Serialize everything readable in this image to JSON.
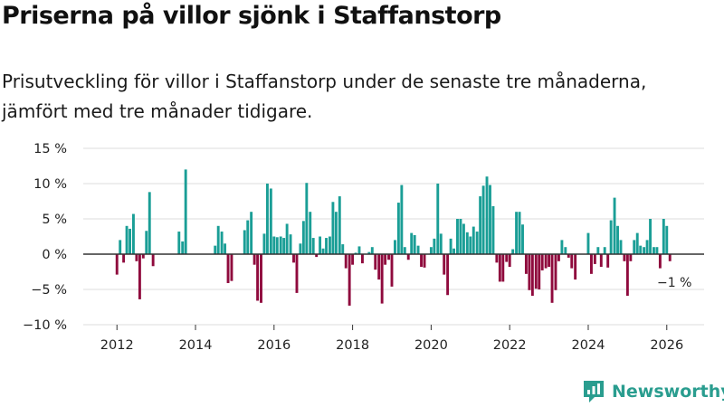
{
  "header": {
    "title": "Priserna på villor sjönk i Staffanstorp",
    "subtitle": "Prisutveckling för villor i Staffanstorp under de senaste tre månaderna, jämfört med tre månader tidigare."
  },
  "brand": {
    "name": "Newsworthy"
  },
  "colors": {
    "positive": "#1a9e96",
    "negative": "#8f0a3d",
    "grid": "#dddddd",
    "axis": "#333333",
    "brand": "#2a9d8f"
  },
  "chart_data": {
    "type": "bar",
    "title": "Priserna på villor sjönk i Staffanstorp",
    "xlabel": "",
    "ylabel": "",
    "x_unit": "year",
    "xlim": [
      2011.05,
      2026.95
    ],
    "ylim": [
      -10,
      15
    ],
    "x_ticks": [
      2012,
      2014,
      2016,
      2018,
      2020,
      2022,
      2024,
      2026
    ],
    "x_tick_labels": [
      "2012",
      "2014",
      "2016",
      "2018",
      "2020",
      "2022",
      "2024",
      "2026"
    ],
    "y_ticks": [
      -10,
      -5,
      0,
      5,
      10,
      15
    ],
    "y_tick_labels": [
      "−10 %",
      "−5 %",
      "0 %",
      "5 %",
      "10 %",
      "15 %"
    ],
    "grid": true,
    "last_value_label": "−1 %",
    "series": [
      {
        "name": "Prisutveckling",
        "points": [
          [
            2012.0,
            -2.9
          ],
          [
            2012.08,
            2.0
          ],
          [
            2012.17,
            -1.2
          ],
          [
            2012.25,
            4.0
          ],
          [
            2012.33,
            3.6
          ],
          [
            2012.42,
            5.7
          ],
          [
            2012.5,
            -1.0
          ],
          [
            2012.58,
            -6.4
          ],
          [
            2012.67,
            -0.6
          ],
          [
            2012.75,
            3.3
          ],
          [
            2012.83,
            8.8
          ],
          [
            2012.92,
            -1.7
          ],
          [
            2013.58,
            3.2
          ],
          [
            2013.67,
            1.8
          ],
          [
            2013.75,
            12.0
          ],
          [
            2014.5,
            1.2
          ],
          [
            2014.58,
            4.0
          ],
          [
            2014.67,
            3.2
          ],
          [
            2014.75,
            1.5
          ],
          [
            2014.83,
            -4.1
          ],
          [
            2014.92,
            -3.8
          ],
          [
            2015.25,
            3.4
          ],
          [
            2015.33,
            4.8
          ],
          [
            2015.42,
            6.0
          ],
          [
            2015.5,
            -1.5
          ],
          [
            2015.58,
            -6.6
          ],
          [
            2015.67,
            -6.9
          ],
          [
            2015.75,
            2.9
          ],
          [
            2015.83,
            10.0
          ],
          [
            2015.92,
            9.3
          ],
          [
            2016.0,
            2.5
          ],
          [
            2016.08,
            2.4
          ],
          [
            2016.17,
            2.5
          ],
          [
            2016.25,
            2.3
          ],
          [
            2016.33,
            4.3
          ],
          [
            2016.42,
            2.8
          ],
          [
            2016.5,
            -1.2
          ],
          [
            2016.58,
            -5.5
          ],
          [
            2016.67,
            1.5
          ],
          [
            2016.75,
            4.7
          ],
          [
            2016.83,
            10.1
          ],
          [
            2016.92,
            6.0
          ],
          [
            2017.0,
            2.3
          ],
          [
            2017.08,
            -0.4
          ],
          [
            2017.17,
            2.5
          ],
          [
            2017.25,
            0.8
          ],
          [
            2017.33,
            2.3
          ],
          [
            2017.42,
            2.5
          ],
          [
            2017.5,
            7.4
          ],
          [
            2017.58,
            6.0
          ],
          [
            2017.67,
            8.2
          ],
          [
            2017.75,
            1.4
          ],
          [
            2017.83,
            -2.0
          ],
          [
            2017.92,
            -7.3
          ],
          [
            2018.0,
            -1.5
          ],
          [
            2018.08,
            0.2
          ],
          [
            2018.17,
            1.1
          ],
          [
            2018.25,
            -1.3
          ],
          [
            2018.42,
            0.3
          ],
          [
            2018.5,
            1.0
          ],
          [
            2018.58,
            -2.2
          ],
          [
            2018.67,
            -3.6
          ],
          [
            2018.75,
            -7.0
          ],
          [
            2018.83,
            -1.5
          ],
          [
            2018.92,
            -0.8
          ],
          [
            2019.0,
            -4.6
          ],
          [
            2019.08,
            2.0
          ],
          [
            2019.17,
            7.3
          ],
          [
            2019.25,
            9.8
          ],
          [
            2019.33,
            1.0
          ],
          [
            2019.42,
            -0.8
          ],
          [
            2019.5,
            3.0
          ],
          [
            2019.58,
            2.7
          ],
          [
            2019.67,
            1.2
          ],
          [
            2019.75,
            -1.8
          ],
          [
            2019.83,
            -1.9
          ],
          [
            2020.0,
            1.0
          ],
          [
            2020.08,
            2.2
          ],
          [
            2020.17,
            10.0
          ],
          [
            2020.25,
            2.9
          ],
          [
            2020.33,
            -2.9
          ],
          [
            2020.42,
            -5.8
          ],
          [
            2020.5,
            2.2
          ],
          [
            2020.58,
            0.8
          ],
          [
            2020.67,
            5.0
          ],
          [
            2020.75,
            5.0
          ],
          [
            2020.83,
            4.3
          ],
          [
            2020.92,
            3.1
          ],
          [
            2021.0,
            2.5
          ],
          [
            2021.08,
            3.9
          ],
          [
            2021.17,
            3.2
          ],
          [
            2021.25,
            8.2
          ],
          [
            2021.33,
            9.7
          ],
          [
            2021.42,
            11.0
          ],
          [
            2021.5,
            9.8
          ],
          [
            2021.58,
            6.8
          ],
          [
            2021.67,
            -1.2
          ],
          [
            2021.75,
            -3.9
          ],
          [
            2021.83,
            -3.9
          ],
          [
            2021.92,
            -1.1
          ],
          [
            2022.0,
            -1.8
          ],
          [
            2022.08,
            0.7
          ],
          [
            2022.17,
            6.0
          ],
          [
            2022.25,
            6.0
          ],
          [
            2022.33,
            4.2
          ],
          [
            2022.42,
            -2.8
          ],
          [
            2022.5,
            -5.1
          ],
          [
            2022.58,
            -5.9
          ],
          [
            2022.67,
            -4.9
          ],
          [
            2022.75,
            -5.0
          ],
          [
            2022.83,
            -2.3
          ],
          [
            2022.92,
            -2.0
          ],
          [
            2023.0,
            -1.8
          ],
          [
            2023.08,
            -6.9
          ],
          [
            2023.17,
            -5.1
          ],
          [
            2023.25,
            -1.0
          ],
          [
            2023.33,
            2.0
          ],
          [
            2023.42,
            1.0
          ],
          [
            2023.5,
            -0.5
          ],
          [
            2023.58,
            -2.0
          ],
          [
            2023.67,
            -3.6
          ],
          [
            2024.0,
            3.0
          ],
          [
            2024.08,
            -2.8
          ],
          [
            2024.17,
            -1.4
          ],
          [
            2024.25,
            1.0
          ],
          [
            2024.33,
            -1.8
          ],
          [
            2024.42,
            1.0
          ],
          [
            2024.5,
            -1.9
          ],
          [
            2024.58,
            4.8
          ],
          [
            2024.67,
            8.0
          ],
          [
            2024.75,
            4.0
          ],
          [
            2024.83,
            2.0
          ],
          [
            2024.92,
            -1.0
          ],
          [
            2025.0,
            -5.9
          ],
          [
            2025.08,
            -1.0
          ],
          [
            2025.17,
            2.0
          ],
          [
            2025.25,
            3.0
          ],
          [
            2025.33,
            1.2
          ],
          [
            2025.42,
            1.0
          ],
          [
            2025.5,
            2.0
          ],
          [
            2025.58,
            5.0
          ],
          [
            2025.67,
            1.0
          ],
          [
            2025.75,
            1.0
          ],
          [
            2025.83,
            -2.0
          ],
          [
            2025.92,
            5.0
          ],
          [
            2026.0,
            4.0
          ],
          [
            2026.08,
            -1.0
          ]
        ]
      }
    ]
  }
}
